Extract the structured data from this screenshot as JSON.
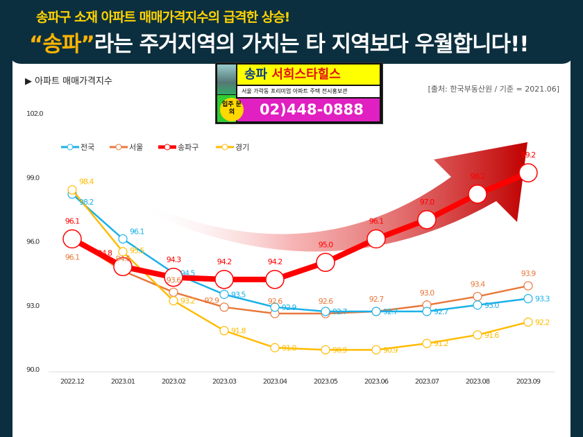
{
  "header": {
    "subtitle": "송파구 소재 아파트 매매가격지수의 급격한 상승!",
    "title_highlight": "“송파”",
    "title_rest": "라는 주거지역의 가치는 타 지역보다 우월합니다!!"
  },
  "ad": {
    "name_a": "송파",
    "name_b": "서희스타힐스",
    "desc": "서울 가락동 프리미엄 아파트 주택 전시홍보관",
    "badge": "입주 문의",
    "phone": "02)448-0888"
  },
  "chart_data": {
    "type": "line",
    "title": "▶ 아파트 매매가격지수",
    "source": "[출처: 한국부동산원 / 기준 = 2021.06]",
    "categories": [
      "2022.12",
      "2023.01",
      "2023.02",
      "2023.03",
      "2023.04",
      "2023.05",
      "2023.06",
      "2023.07",
      "2023.08",
      "2023.09"
    ],
    "ylim": [
      90,
      102
    ],
    "yticks": [
      "90.0",
      "93.0",
      "96.0",
      "99.0",
      "102.0"
    ],
    "legend": "top-left",
    "series": [
      {
        "name": "전국",
        "color": "#1ab0e8",
        "values": [
          98.2,
          96.1,
          94.5,
          93.5,
          92.9,
          92.7,
          92.7,
          92.7,
          93.0,
          93.3
        ]
      },
      {
        "name": "서울",
        "color": "#e8783a",
        "values": [
          96.1,
          94.6,
          93.6,
          92.9,
          92.6,
          92.6,
          92.7,
          93.0,
          93.4,
          93.9
        ]
      },
      {
        "name": "송파구",
        "color": "#ff0000",
        "values": [
          96.1,
          94.8,
          94.3,
          94.2,
          94.2,
          95.0,
          96.1,
          97.0,
          98.2,
          99.2
        ]
      },
      {
        "name": "경기",
        "color": "#ffbb00",
        "values": [
          98.4,
          95.5,
          93.2,
          91.8,
          91.0,
          90.9,
          90.9,
          91.2,
          91.6,
          92.2
        ]
      }
    ]
  }
}
